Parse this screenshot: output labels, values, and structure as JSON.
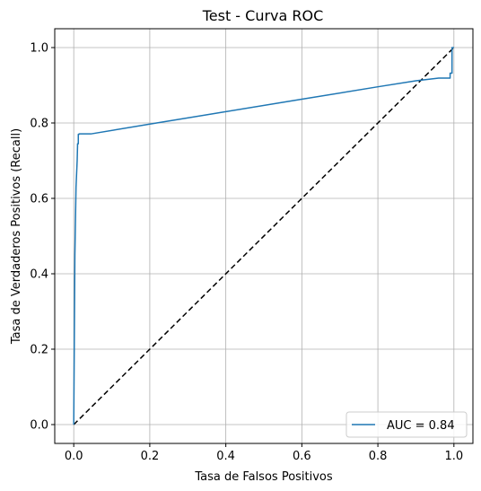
{
  "chart_data": {
    "type": "line",
    "title": "Test - Curva ROC",
    "xlabel": "Tasa de Falsos Positivos",
    "ylabel": "Tasa de Verdaderos Positivos (Recall)",
    "xlim": [
      -0.05,
      1.05
    ],
    "ylim": [
      -0.05,
      1.05
    ],
    "xticks": [
      "0.0",
      "0.2",
      "0.4",
      "0.6",
      "0.8",
      "1.0"
    ],
    "yticks": [
      "0.0",
      "0.2",
      "0.4",
      "0.6",
      "0.8",
      "1.0"
    ],
    "grid": true,
    "legend_position": "lower-right",
    "series": [
      {
        "name": "AUC = 0.84",
        "color": "#1f77b4",
        "style": "solid",
        "x": [
          0.0,
          0.003,
          0.006,
          0.009,
          0.01,
          0.01,
          0.012,
          0.012,
          0.014,
          0.014,
          0.045,
          0.2,
          0.4,
          0.6,
          0.8,
          0.9,
          0.96,
          0.99,
          0.99,
          0.995,
          0.995,
          1.0
        ],
        "y": [
          0.0,
          0.45,
          0.63,
          0.7,
          0.74,
          0.745,
          0.745,
          0.77,
          0.77,
          0.771,
          0.771,
          0.797,
          0.83,
          0.863,
          0.896,
          0.912,
          0.919,
          0.919,
          0.932,
          0.932,
          1.0,
          1.0
        ]
      },
      {
        "color": "#000000",
        "style": "dashed",
        "x": [
          0.0,
          1.0
        ],
        "y": [
          0.0,
          1.0
        ]
      }
    ]
  }
}
